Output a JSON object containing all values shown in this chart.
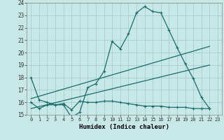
{
  "xlabel": "Humidex (Indice chaleur)",
  "background_color": "#c8e8e8",
  "grid_color": "#a0c8c8",
  "line_color": "#1a6b6b",
  "xlim": [
    -0.5,
    23.5
  ],
  "ylim": [
    15,
    24
  ],
  "yticks": [
    15,
    16,
    17,
    18,
    19,
    20,
    21,
    22,
    23,
    24
  ],
  "xticks": [
    0,
    1,
    2,
    3,
    4,
    5,
    6,
    7,
    8,
    9,
    10,
    11,
    12,
    13,
    14,
    15,
    16,
    17,
    18,
    19,
    20,
    21,
    22,
    23
  ],
  "series1_x": [
    0,
    1,
    2,
    3,
    4,
    5,
    6,
    7,
    8,
    9,
    10,
    11,
    12,
    13,
    14,
    15,
    16,
    17,
    18,
    19,
    20,
    21,
    22
  ],
  "series1_y": [
    18.0,
    16.2,
    16.0,
    15.8,
    15.8,
    14.8,
    15.2,
    17.2,
    17.5,
    18.5,
    20.9,
    20.3,
    21.5,
    23.2,
    23.7,
    23.3,
    23.2,
    21.8,
    20.4,
    19.1,
    17.9,
    16.4,
    15.5
  ],
  "series2_x": [
    0,
    1,
    2,
    3,
    4,
    5,
    6,
    7,
    8,
    9,
    10,
    11,
    12,
    13,
    14,
    15,
    16,
    17,
    18,
    19,
    20,
    21,
    22
  ],
  "series2_y": [
    16.0,
    15.5,
    15.8,
    15.8,
    15.9,
    15.4,
    16.1,
    16.0,
    16.0,
    16.1,
    16.1,
    16.0,
    15.9,
    15.8,
    15.7,
    15.7,
    15.7,
    15.6,
    15.6,
    15.6,
    15.5,
    15.5,
    15.5
  ],
  "series3_x": [
    0,
    22
  ],
  "series3_y": [
    16.3,
    20.5
  ],
  "series4_x": [
    0,
    22
  ],
  "series4_y": [
    15.5,
    19.0
  ]
}
